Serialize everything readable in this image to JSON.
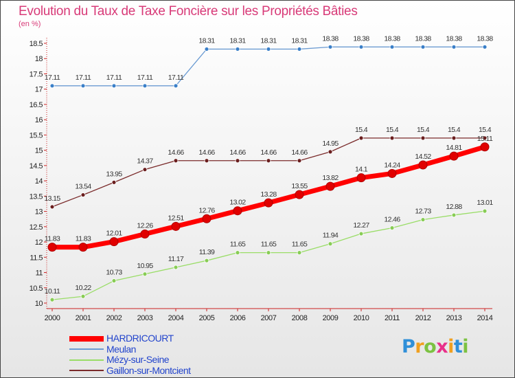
{
  "chart_data": {
    "type": "line",
    "title": "Evolution du Taux de Taxe Foncière sur les Propriétés Bâties",
    "unit_label": "(en %)",
    "categories": [
      "2000",
      "2001",
      "2002",
      "2003",
      "2004",
      "2005",
      "2006",
      "2007",
      "2008",
      "2009",
      "2010",
      "2011",
      "2012",
      "2013",
      "2014"
    ],
    "ylim": [
      10,
      18.5
    ],
    "y_ticks": [
      "10",
      "10.5",
      "11",
      "11.5",
      "12",
      "12.5",
      "13",
      "13.5",
      "14",
      "14.5",
      "15",
      "15.5",
      "16",
      "16.5",
      "17",
      "17.5",
      "18",
      "18.5"
    ],
    "grid": false,
    "legend_position": "bottom-left",
    "series": [
      {
        "name": "HARDRICOURT",
        "color": "#ff0000",
        "marker_color": "#e00000",
        "thick": true,
        "values": [
          11.83,
          11.83,
          12.01,
          12.26,
          12.51,
          12.76,
          13.02,
          13.28,
          13.55,
          13.82,
          14.1,
          14.24,
          14.52,
          14.81,
          15.11
        ],
        "labels": [
          "11.83",
          "11.83",
          "12.01",
          "12.26",
          "12.51",
          "12.76",
          "13.02",
          "13.28",
          "13.55",
          "13.82",
          "14.1",
          "14.24",
          "14.52",
          "14.81",
          "15.11"
        ]
      },
      {
        "name": "Meulan",
        "color": "#6b9bd2",
        "marker_color": "#3a7fc8",
        "thick": false,
        "values": [
          17.11,
          17.11,
          17.11,
          17.11,
          17.11,
          18.31,
          18.31,
          18.31,
          18.31,
          18.38,
          18.38,
          18.38,
          18.38,
          18.38,
          18.38
        ],
        "labels": [
          "17.11",
          "17.11",
          "17.11",
          "17.11",
          "17.11",
          "18.31",
          "18.31",
          "18.31",
          "18.31",
          "18.38",
          "18.38",
          "18.38",
          "18.38",
          "18.38",
          "18.38"
        ]
      },
      {
        "name": "Mézy-sur-Seine",
        "color": "#99dd66",
        "marker_color": "#88cc55",
        "thick": false,
        "values": [
          10.11,
          10.22,
          10.73,
          10.95,
          11.17,
          11.39,
          11.65,
          11.65,
          11.65,
          11.94,
          12.27,
          12.46,
          12.73,
          12.88,
          13.01
        ],
        "labels": [
          "10.11",
          "10.22",
          "10.73",
          "10.95",
          "11.17",
          "11.39",
          "11.65",
          "11.65",
          "11.65",
          "11.94",
          "12.27",
          "12.46",
          "12.73",
          "12.88",
          "13.01"
        ]
      },
      {
        "name": "Gaillon-sur-Montcient",
        "color": "#7a2a2a",
        "marker_color": "#6a1e1e",
        "thick": false,
        "values": [
          13.15,
          13.54,
          13.95,
          14.37,
          14.66,
          14.66,
          14.66,
          14.66,
          14.66,
          14.95,
          15.4,
          15.4,
          15.4,
          15.4,
          15.4
        ],
        "labels": [
          "13.15",
          "13.54",
          "13.95",
          "14.37",
          "14.66",
          "14.66",
          "14.66",
          "14.66",
          "14.66",
          "14.95",
          "15.4",
          "15.4",
          "15.4",
          "15.4",
          "15.4"
        ]
      }
    ]
  },
  "logo": {
    "letters": [
      {
        "char": "P",
        "color": "#2f8fd8"
      },
      {
        "char": "r",
        "color": "#f0a020"
      },
      {
        "char": "o",
        "color": "#7cc242"
      },
      {
        "char": "x",
        "color": "#e8308a"
      },
      {
        "char": "i",
        "color": "#f0a020"
      },
      {
        "char": "t",
        "color": "#2f8fd8"
      },
      {
        "char": "i",
        "color": "#7cc242"
      }
    ]
  }
}
